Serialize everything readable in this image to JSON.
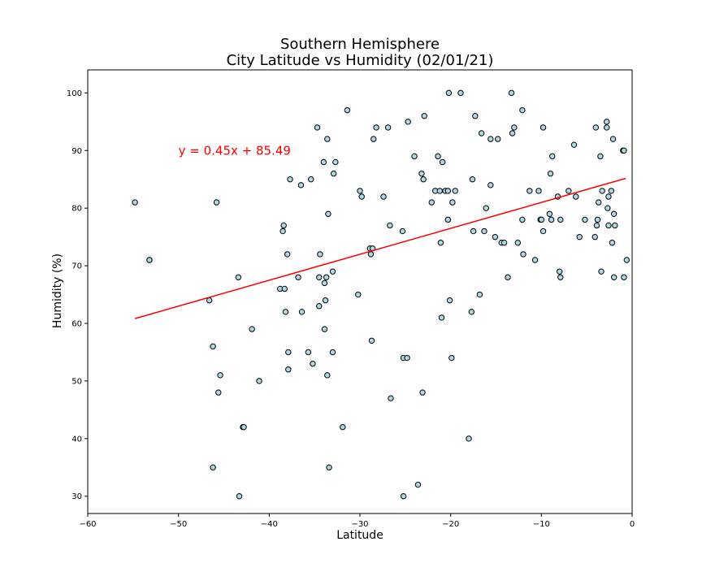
{
  "chart_data": {
    "type": "scatter",
    "title_line1": "Southern Hemisphere",
    "title_line2": "City Latitude vs Humidity (02/01/21)",
    "xlabel": "Latitude",
    "ylabel": "Humidity (%)",
    "xlim": [
      -60,
      0
    ],
    "ylim": [
      27,
      104
    ],
    "xticks": [
      -60,
      -50,
      -40,
      -30,
      -20,
      -10,
      0
    ],
    "yticks": [
      30,
      40,
      50,
      60,
      70,
      80,
      90,
      100
    ],
    "marker_fill": "#add8e6",
    "marker_edge": "#000000",
    "line_color": "#ff0000",
    "regression": {
      "equation": "y = 0.45x + 85.49",
      "slope": 0.45,
      "intercept": 85.49,
      "x_range": [
        -54.8,
        -0.7
      ],
      "label_x": -50,
      "label_y": 90
    },
    "series": [
      {
        "points": [
          [
            -54.8,
            81
          ],
          [
            -53.2,
            71
          ],
          [
            -53.2,
            71
          ],
          [
            -46.6,
            64
          ],
          [
            -46.2,
            56
          ],
          [
            -46.2,
            35
          ],
          [
            -45.8,
            81
          ],
          [
            -45.6,
            48
          ],
          [
            -45.4,
            51
          ],
          [
            -43.4,
            68
          ],
          [
            -43.3,
            30
          ],
          [
            -42.9,
            42
          ],
          [
            -42.8,
            42
          ],
          [
            -41.9,
            59
          ],
          [
            -41.1,
            50
          ],
          [
            -38.8,
            66
          ],
          [
            -38.5,
            76
          ],
          [
            -38.4,
            77
          ],
          [
            -38.3,
            66
          ],
          [
            -38.2,
            62
          ],
          [
            -38.0,
            72
          ],
          [
            -37.9,
            55
          ],
          [
            -37.9,
            52
          ],
          [
            -37.7,
            85
          ],
          [
            -36.8,
            68
          ],
          [
            -36.5,
            84
          ],
          [
            -36.4,
            62
          ],
          [
            -35.7,
            55
          ],
          [
            -35.4,
            85
          ],
          [
            -35.2,
            53
          ],
          [
            -34.7,
            94
          ],
          [
            -34.5,
            63
          ],
          [
            -34.5,
            68
          ],
          [
            -34.4,
            72
          ],
          [
            -34.0,
            88
          ],
          [
            -33.9,
            67
          ],
          [
            -33.9,
            59
          ],
          [
            -33.8,
            64
          ],
          [
            -33.7,
            68
          ],
          [
            -33.6,
            51
          ],
          [
            -33.6,
            92
          ],
          [
            -33.5,
            79
          ],
          [
            -33.4,
            35
          ],
          [
            -33.0,
            69
          ],
          [
            -33.0,
            55
          ],
          [
            -32.9,
            86
          ],
          [
            -32.7,
            88
          ],
          [
            -31.9,
            42
          ],
          [
            -31.4,
            97
          ],
          [
            -30.2,
            65
          ],
          [
            -30.0,
            83
          ],
          [
            -29.8,
            82
          ],
          [
            -28.9,
            73
          ],
          [
            -28.8,
            72
          ],
          [
            -28.7,
            57
          ],
          [
            -28.6,
            73
          ],
          [
            -28.5,
            92
          ],
          [
            -28.2,
            94
          ],
          [
            -27.4,
            82
          ],
          [
            -26.9,
            94
          ],
          [
            -26.7,
            77
          ],
          [
            -26.6,
            47
          ],
          [
            -25.3,
            76
          ],
          [
            -25.2,
            54
          ],
          [
            -25.2,
            30
          ],
          [
            -24.8,
            54
          ],
          [
            -24.7,
            95
          ],
          [
            -24.0,
            89
          ],
          [
            -23.6,
            32
          ],
          [
            -23.2,
            86
          ],
          [
            -23.1,
            48
          ],
          [
            -23.0,
            85
          ],
          [
            -22.9,
            96
          ],
          [
            -22.1,
            81
          ],
          [
            -21.7,
            83
          ],
          [
            -21.4,
            89
          ],
          [
            -21.2,
            83
          ],
          [
            -21.1,
            74
          ],
          [
            -21.0,
            61
          ],
          [
            -20.9,
            88
          ],
          [
            -20.6,
            83
          ],
          [
            -20.3,
            78
          ],
          [
            -20.3,
            83
          ],
          [
            -20.2,
            100
          ],
          [
            -20.1,
            64
          ],
          [
            -19.9,
            54
          ],
          [
            -19.8,
            81
          ],
          [
            -19.5,
            83
          ],
          [
            -18.9,
            100
          ],
          [
            -18.0,
            40
          ],
          [
            -17.7,
            62
          ],
          [
            -17.6,
            85
          ],
          [
            -17.5,
            76
          ],
          [
            -17.3,
            96
          ],
          [
            -16.8,
            65
          ],
          [
            -16.6,
            93
          ],
          [
            -16.3,
            76
          ],
          [
            -16.1,
            80
          ],
          [
            -15.6,
            84
          ],
          [
            -15.6,
            92
          ],
          [
            -15.1,
            75
          ],
          [
            -14.8,
            92
          ],
          [
            -14.4,
            74
          ],
          [
            -14.1,
            74
          ],
          [
            -13.7,
            68
          ],
          [
            -13.3,
            100
          ],
          [
            -13.2,
            93
          ],
          [
            -13.0,
            94
          ],
          [
            -12.6,
            74
          ],
          [
            -12.1,
            97
          ],
          [
            -12.1,
            78
          ],
          [
            -12.0,
            72
          ],
          [
            -11.3,
            83
          ],
          [
            -10.7,
            71
          ],
          [
            -10.3,
            83
          ],
          [
            -10.1,
            78
          ],
          [
            -10.0,
            78
          ],
          [
            -9.8,
            94
          ],
          [
            -9.8,
            76
          ],
          [
            -9.1,
            79
          ],
          [
            -9.0,
            86
          ],
          [
            -8.9,
            78
          ],
          [
            -8.8,
            89
          ],
          [
            -8.2,
            82
          ],
          [
            -8.0,
            69
          ],
          [
            -7.9,
            68
          ],
          [
            -7.9,
            78
          ],
          [
            -7.0,
            83
          ],
          [
            -6.4,
            91
          ],
          [
            -6.2,
            82
          ],
          [
            -5.8,
            75
          ],
          [
            -5.2,
            78
          ],
          [
            -4.1,
            75
          ],
          [
            -4.0,
            94
          ],
          [
            -3.9,
            77
          ],
          [
            -3.8,
            78
          ],
          [
            -3.7,
            81
          ],
          [
            -3.5,
            89
          ],
          [
            -3.4,
            69
          ],
          [
            -3.3,
            83
          ],
          [
            -2.8,
            94
          ],
          [
            -2.8,
            95
          ],
          [
            -2.7,
            80
          ],
          [
            -2.6,
            82
          ],
          [
            -2.6,
            77
          ],
          [
            -2.3,
            83
          ],
          [
            -2.2,
            74
          ],
          [
            -2.1,
            92
          ],
          [
            -2.0,
            79
          ],
          [
            -2.0,
            68
          ],
          [
            -1.9,
            77
          ],
          [
            -1.0,
            90
          ],
          [
            -0.9,
            90
          ],
          [
            -0.9,
            68
          ],
          [
            -0.6,
            71
          ]
        ]
      }
    ]
  }
}
